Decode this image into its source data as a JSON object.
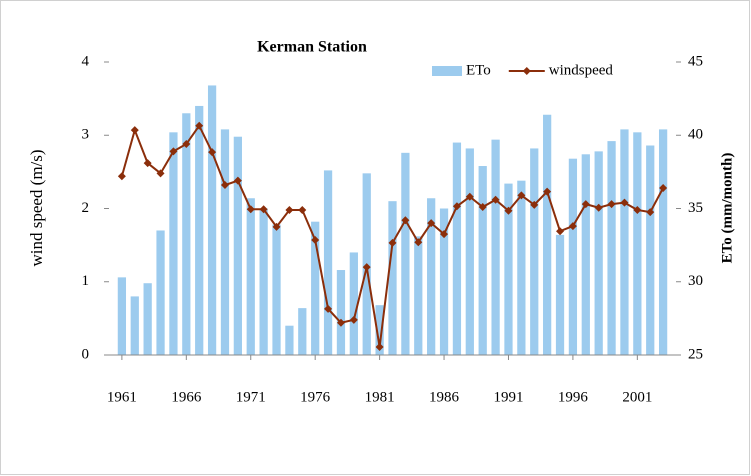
{
  "chart_data": {
    "type": "bar-line",
    "title": "Kerman Station",
    "y_label": "wind speed (m/s)",
    "y2_label": "ETo (mm/month)",
    "x": [
      1961,
      1962,
      1963,
      1964,
      1965,
      1966,
      1967,
      1968,
      1969,
      1970,
      1971,
      1972,
      1973,
      1974,
      1975,
      1976,
      1977,
      1978,
      1979,
      1980,
      1981,
      1982,
      1983,
      1984,
      1985,
      1986,
      1987,
      1988,
      1989,
      1990,
      1991,
      1992,
      1993,
      1994,
      1995,
      1996,
      1997,
      1998,
      1999,
      2000,
      2001,
      2002,
      2003
    ],
    "xlim": [
      1960,
      2004
    ],
    "xticks": [
      1961,
      1966,
      1971,
      1976,
      1981,
      1986,
      1991,
      1996,
      2001
    ],
    "ylim": [
      0,
      4
    ],
    "yticks": [
      0,
      1,
      2,
      3,
      4
    ],
    "y2lim": [
      25,
      45
    ],
    "y2ticks": [
      25,
      30,
      35,
      40,
      45
    ],
    "legend": "top-right",
    "series": [
      {
        "name": "ETo",
        "type": "bar",
        "axis": "y2",
        "color": "#9ccbee",
        "values": [
          30.3,
          29.0,
          29.9,
          33.5,
          40.2,
          41.5,
          42.0,
          43.4,
          40.4,
          39.9,
          35.7,
          35.0,
          33.9,
          27.0,
          28.2,
          34.1,
          37.6,
          30.8,
          32.0,
          37.4,
          28.4,
          35.5,
          38.8,
          33.1,
          35.7,
          35.0,
          39.5,
          39.1,
          37.9,
          39.7,
          36.7,
          36.9,
          39.1,
          41.4,
          33.2,
          38.4,
          38.7,
          38.9,
          39.6,
          40.4,
          40.2,
          39.3,
          40.4
        ]
      },
      {
        "name": "windspeed",
        "type": "line",
        "color": "#8b2e0b",
        "values": [
          2.44,
          3.07,
          2.62,
          2.48,
          2.78,
          2.88,
          3.13,
          2.77,
          2.32,
          2.38,
          1.99,
          1.99,
          1.75,
          1.98,
          1.98,
          1.57,
          0.63,
          0.44,
          0.48,
          1.2,
          0.11,
          1.53,
          1.84,
          1.54,
          1.8,
          1.65,
          2.03,
          2.16,
          2.02,
          2.12,
          1.97,
          2.18,
          2.05,
          2.23,
          1.69,
          1.76,
          2.06,
          2.01,
          2.06,
          2.08,
          1.98,
          1.95,
          2.28
        ]
      }
    ]
  }
}
